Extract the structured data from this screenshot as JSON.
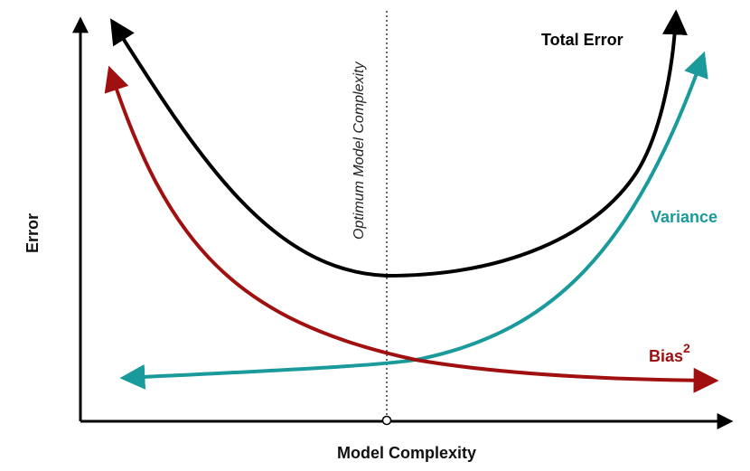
{
  "axes": {
    "x_label": "Model Complexity",
    "y_label": "Error"
  },
  "optimum": {
    "label": "Optimum Model Complexity"
  },
  "curves": {
    "total_error": {
      "label": "Total Error",
      "color": "#000000"
    },
    "variance": {
      "label": "Variance",
      "color": "#1a9a9a"
    },
    "bias": {
      "label": "Bias",
      "superscript": "2",
      "color": "#a01010"
    }
  }
}
